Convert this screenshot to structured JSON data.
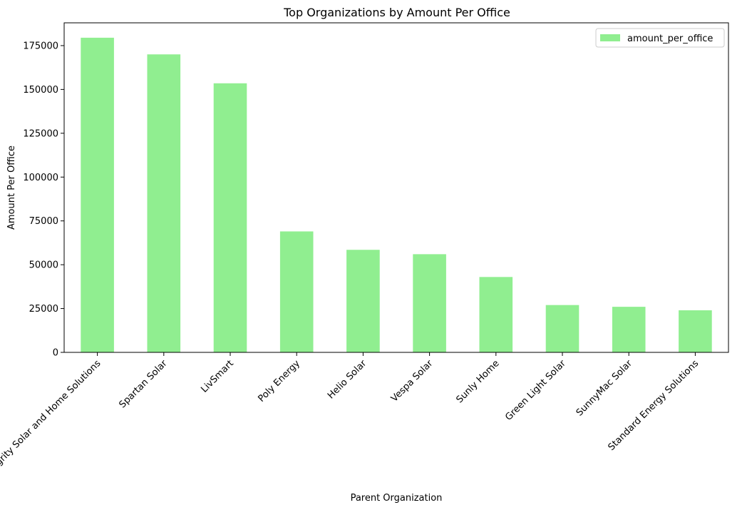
{
  "chart_data": {
    "type": "bar",
    "title": "Top Organizations by Amount Per Office",
    "xlabel": "Parent Organization",
    "ylabel": "Amount Per Office",
    "ylim": [
      0,
      188000
    ],
    "yticks": [
      0,
      25000,
      50000,
      75000,
      100000,
      125000,
      150000,
      175000
    ],
    "categories": [
      "Integrity Solar and Home Solutions",
      "Spartan Solar",
      "LivSmart",
      "Poly Energy",
      "Helio Solar",
      "Vespa Solar",
      "Sunly Home",
      "Green Light Solar",
      "SunnyMac Solar",
      "Standard Energy Solutions"
    ],
    "series": [
      {
        "name": "amount_per_office",
        "color": "#90ee90",
        "values": [
          179500,
          170000,
          153500,
          69000,
          58500,
          56000,
          43000,
          27000,
          26000,
          24000
        ]
      }
    ],
    "legend_position": "top-right",
    "grid": false
  }
}
